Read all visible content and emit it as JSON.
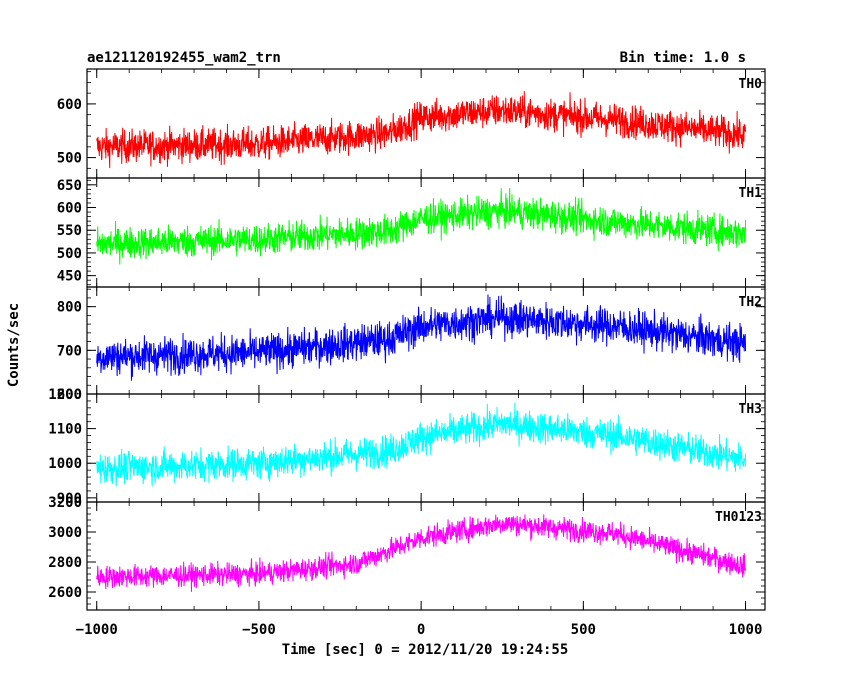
{
  "header": {
    "left_title": "ae121120192455_wam2_trn",
    "right_title": "Bin time: 1.0 s"
  },
  "chart_data": {
    "type": "line",
    "title": "ae121120192455_wam2_trn",
    "subtitle": "Bin time: 1.0 s",
    "xlabel": "Time [sec] 0 = 2012/11/20 19:24:55",
    "ylabel": "Counts/sec",
    "xlim": [
      -1030,
      1060
    ],
    "x_ticks": [
      -1000,
      -500,
      0,
      500,
      1000
    ],
    "x_tick_labels": [
      "−1000",
      "−500",
      "0",
      "500",
      "1000"
    ],
    "grid": false,
    "x_start": -1000,
    "x_end": 1000,
    "x_step": 1,
    "panels": [
      {
        "name": "TH0",
        "color": "#ff0000",
        "ylim": [
          462,
          665
        ],
        "yticks": [
          500,
          600
        ],
        "profile": [
          [
            -1000,
            520
          ],
          [
            -500,
            525
          ],
          [
            -100,
            545
          ],
          [
            0,
            575
          ],
          [
            250,
            588
          ],
          [
            600,
            570
          ],
          [
            1000,
            542
          ]
        ],
        "noise": 28
      },
      {
        "name": "TH1",
        "color": "#00ff00",
        "ylim": [
          425,
          665
        ],
        "yticks": [
          450,
          500,
          550,
          600,
          650
        ],
        "profile": [
          [
            -1000,
            520
          ],
          [
            -500,
            530
          ],
          [
            -100,
            548
          ],
          [
            0,
            575
          ],
          [
            250,
            593
          ],
          [
            600,
            568
          ],
          [
            1000,
            543
          ]
        ],
        "noise": 32
      },
      {
        "name": "TH2",
        "color": "#0000ff",
        "ylim": [
          600,
          845
        ],
        "yticks": [
          600,
          700,
          800
        ],
        "profile": [
          [
            -1000,
            685
          ],
          [
            -500,
            695
          ],
          [
            -100,
            725
          ],
          [
            0,
            755
          ],
          [
            250,
            775
          ],
          [
            600,
            755
          ],
          [
            1000,
            715
          ]
        ],
        "noise": 38
      },
      {
        "name": "TH3",
        "color": "#00ffff",
        "ylim": [
          888,
          1200
        ],
        "yticks": [
          900,
          1000,
          1100,
          1200
        ],
        "profile": [
          [
            -1000,
            985
          ],
          [
            -500,
            1000
          ],
          [
            -100,
            1035
          ],
          [
            0,
            1075
          ],
          [
            250,
            1115
          ],
          [
            600,
            1080
          ],
          [
            1000,
            1010
          ]
        ],
        "noise": 42
      },
      {
        "name": "TH0123",
        "color": "#ff00ff",
        "ylim": [
          2480,
          3200
        ],
        "yticks": [
          2600,
          2800,
          3000,
          3200
        ],
        "profile": [
          [
            -1000,
            2700
          ],
          [
            -500,
            2720
          ],
          [
            -200,
            2790
          ],
          [
            0,
            2960
          ],
          [
            250,
            3060
          ],
          [
            600,
            2990
          ],
          [
            1000,
            2770
          ]
        ],
        "noise": 68
      }
    ]
  }
}
